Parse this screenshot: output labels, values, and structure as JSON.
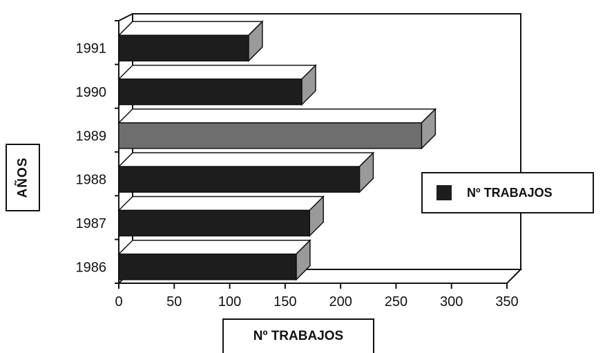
{
  "chart_data": {
    "type": "bar",
    "orientation": "horizontal",
    "three_d": true,
    "categories": [
      "1986",
      "1987",
      "1988",
      "1989",
      "1990",
      "1991"
    ],
    "series": [
      {
        "name": "Nº TRABAJOS",
        "values": [
          160,
          172,
          217,
          273,
          165,
          117
        ]
      }
    ],
    "xlabel": "Nº TRABAJOS",
    "ylabel": "AÑOS",
    "xlim": [
      0,
      350
    ],
    "xticks": [
      "0",
      "50",
      "100",
      "150",
      "200",
      "250",
      "300",
      "350"
    ],
    "grid": false,
    "legend_position": "right",
    "highlight_category": "1989",
    "colors": {
      "bar": "#1d1d1d",
      "highlight": "#6e6e6e",
      "bar_side": "#9a9a9a",
      "bar_top": "#ffffff"
    }
  }
}
